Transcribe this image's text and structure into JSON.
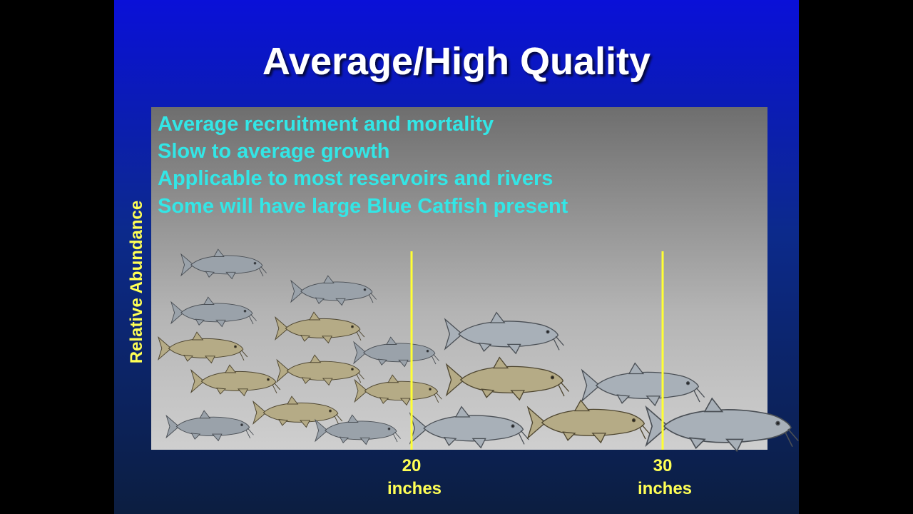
{
  "title": "Average/High Quality",
  "bullets": [
    "Average recruitment and mortality",
    "Slow to average growth",
    "Applicable to most reservoirs and rivers",
    "Some will have large Blue Catfish present"
  ],
  "y_axis_label": "Relative Abundance",
  "markers": [
    {
      "value": "20",
      "unit": "inches"
    },
    {
      "value": "30",
      "unit": "inches"
    }
  ]
}
